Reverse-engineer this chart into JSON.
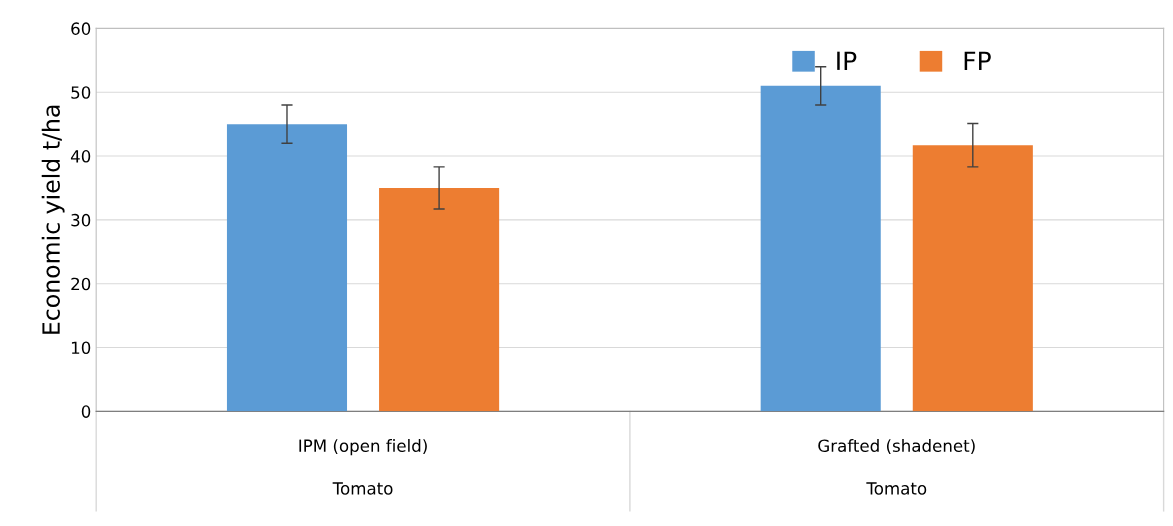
{
  "chart_data": {
    "type": "bar",
    "ylabel": "Economic yield t/ha",
    "categories": [
      "IPM (open field)",
      "Grafted (shadenet)"
    ],
    "series": [
      {
        "name": "IP",
        "color": "#5b9bd5",
        "values": [
          45,
          51
        ],
        "errors": [
          3,
          3
        ]
      },
      {
        "name": "FP",
        "color": "#ed7d31",
        "values": [
          35,
          41.7
        ],
        "errors": [
          3.3,
          3.4
        ]
      }
    ],
    "annotations": [
      "Tomato",
      "Tomato"
    ],
    "ylim": [
      0,
      60
    ],
    "yticks": [
      0,
      10,
      20,
      30,
      40,
      50,
      60
    ],
    "grid": "y",
    "legend": "top right"
  }
}
